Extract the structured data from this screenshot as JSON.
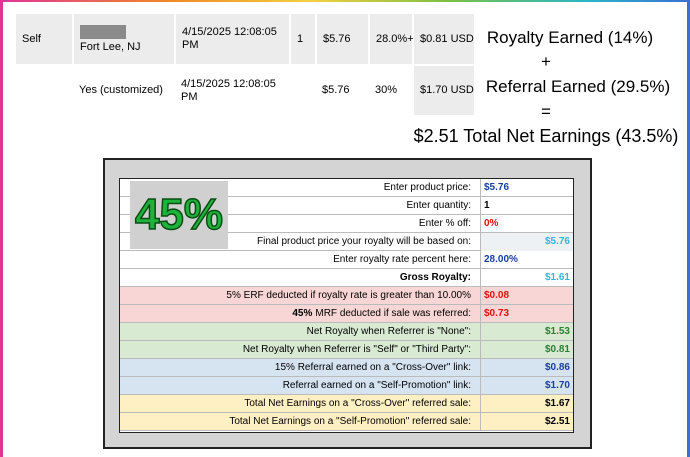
{
  "top_table": {
    "rows": [
      [
        "Self",
        "Fort Lee, NJ",
        "4/15/2025 12:08:05 PM",
        "1",
        "$5.76",
        "28.0%+",
        "$0.81 USD"
      ],
      [
        null,
        "Yes (customized)",
        "4/15/2025 12:08:05 PM",
        null,
        "$5.76",
        "30%",
        "$1.70 USD"
      ]
    ]
  },
  "summary": {
    "line1": "Royalty Earned (14%)",
    "plus": "+",
    "line2": "Referral Earned (29.5%)",
    "equals": "=",
    "line3": "$2.51 Total Net Earnings (43.5%)"
  },
  "calculator": {
    "badge": "45%",
    "sections": [
      {
        "rows": [
          {
            "label": "Enter product price:",
            "value": "$5.76",
            "color": "#1a3fa0"
          },
          {
            "label": "Enter quantity:",
            "value": "1",
            "color": "#000000"
          },
          {
            "label": "Enter % off:",
            "value": "0%",
            "color": "#e01010"
          },
          {
            "label": "Final product price your royalty will be based on:",
            "value": "$5.76",
            "color": "#33b5e5"
          },
          {
            "label": "Enter royalty rate percent here:",
            "value": "28.00%",
            "color": "#1a3fa0"
          },
          {
            "label": "Gross Royalty:",
            "value": "$1.61",
            "color": "#33b5e5"
          }
        ]
      },
      {
        "rows": [
          {
            "label": "5% ERF deducted if royalty rate is greater than 10.00%",
            "value": "$0.08",
            "color": "#e01010"
          },
          {
            "bold": "45%",
            "label": "MRF deducted if sale was referred:",
            "value": "$0.73",
            "color": "#e01010"
          }
        ]
      },
      {
        "rows": [
          {
            "label": "Net Royalty when Referrer is \"None\":",
            "value": "$1.53",
            "color": "#2e7d32"
          },
          {
            "label": "Net Royalty when Referrer is \"Self\" or \"Third Party\":",
            "value": "$0.81",
            "color": "#2e7d32"
          }
        ]
      },
      {
        "rows": [
          {
            "label": "15% Referral earned on a \"Cross-Over\" link:",
            "value": "$0.86",
            "color": "#1a3fa0"
          },
          {
            "label": "Referral earned on a \"Self-Promotion\" link:",
            "value": "$1.70",
            "color": "#1a3fa0"
          }
        ]
      },
      {
        "rows": [
          {
            "label": "Total Net Earnings on a \"Cross-Over\" referred sale:",
            "value": "$1.67",
            "color": "#000000"
          },
          {
            "label": "Total Net Earnings on a \"Self-Promotion\" referred sale:",
            "value": "$2.51",
            "color": "#000000"
          }
        ]
      }
    ]
  }
}
